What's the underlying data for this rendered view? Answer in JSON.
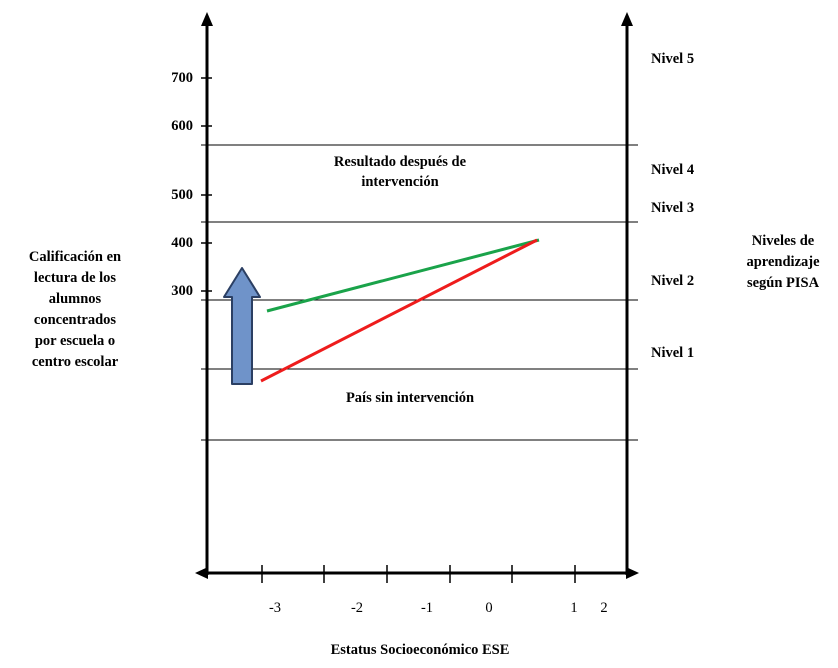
{
  "y_ticks": [
    "700",
    "600",
    "500",
    "400",
    "300"
  ],
  "x_ticks": [
    "-3",
    "-2",
    "-1",
    "0",
    "1",
    "2"
  ],
  "left_axis_label": [
    "Calificación en",
    "lectura de los",
    "alumnos",
    "concentrados",
    "por escuela o",
    "centro escolar"
  ],
  "right_axis_label": [
    "Niveles de",
    "aprendizaje",
    "según PISA"
  ],
  "x_axis_label": "Estatus Socioeconómico ESE",
  "levels": [
    "Nivel 5",
    "Nivel 4",
    "Nivel 3",
    "Nivel 2",
    "Nivel 1"
  ],
  "label_after": [
    "Resultado después de",
    "intervención"
  ],
  "label_before": "País sin intervención",
  "colors": {
    "after_line": "#1aa34a",
    "before_line": "#ee1c1c",
    "arrow": "#6f93c9",
    "arrow_stroke": "#2b3f63"
  }
}
